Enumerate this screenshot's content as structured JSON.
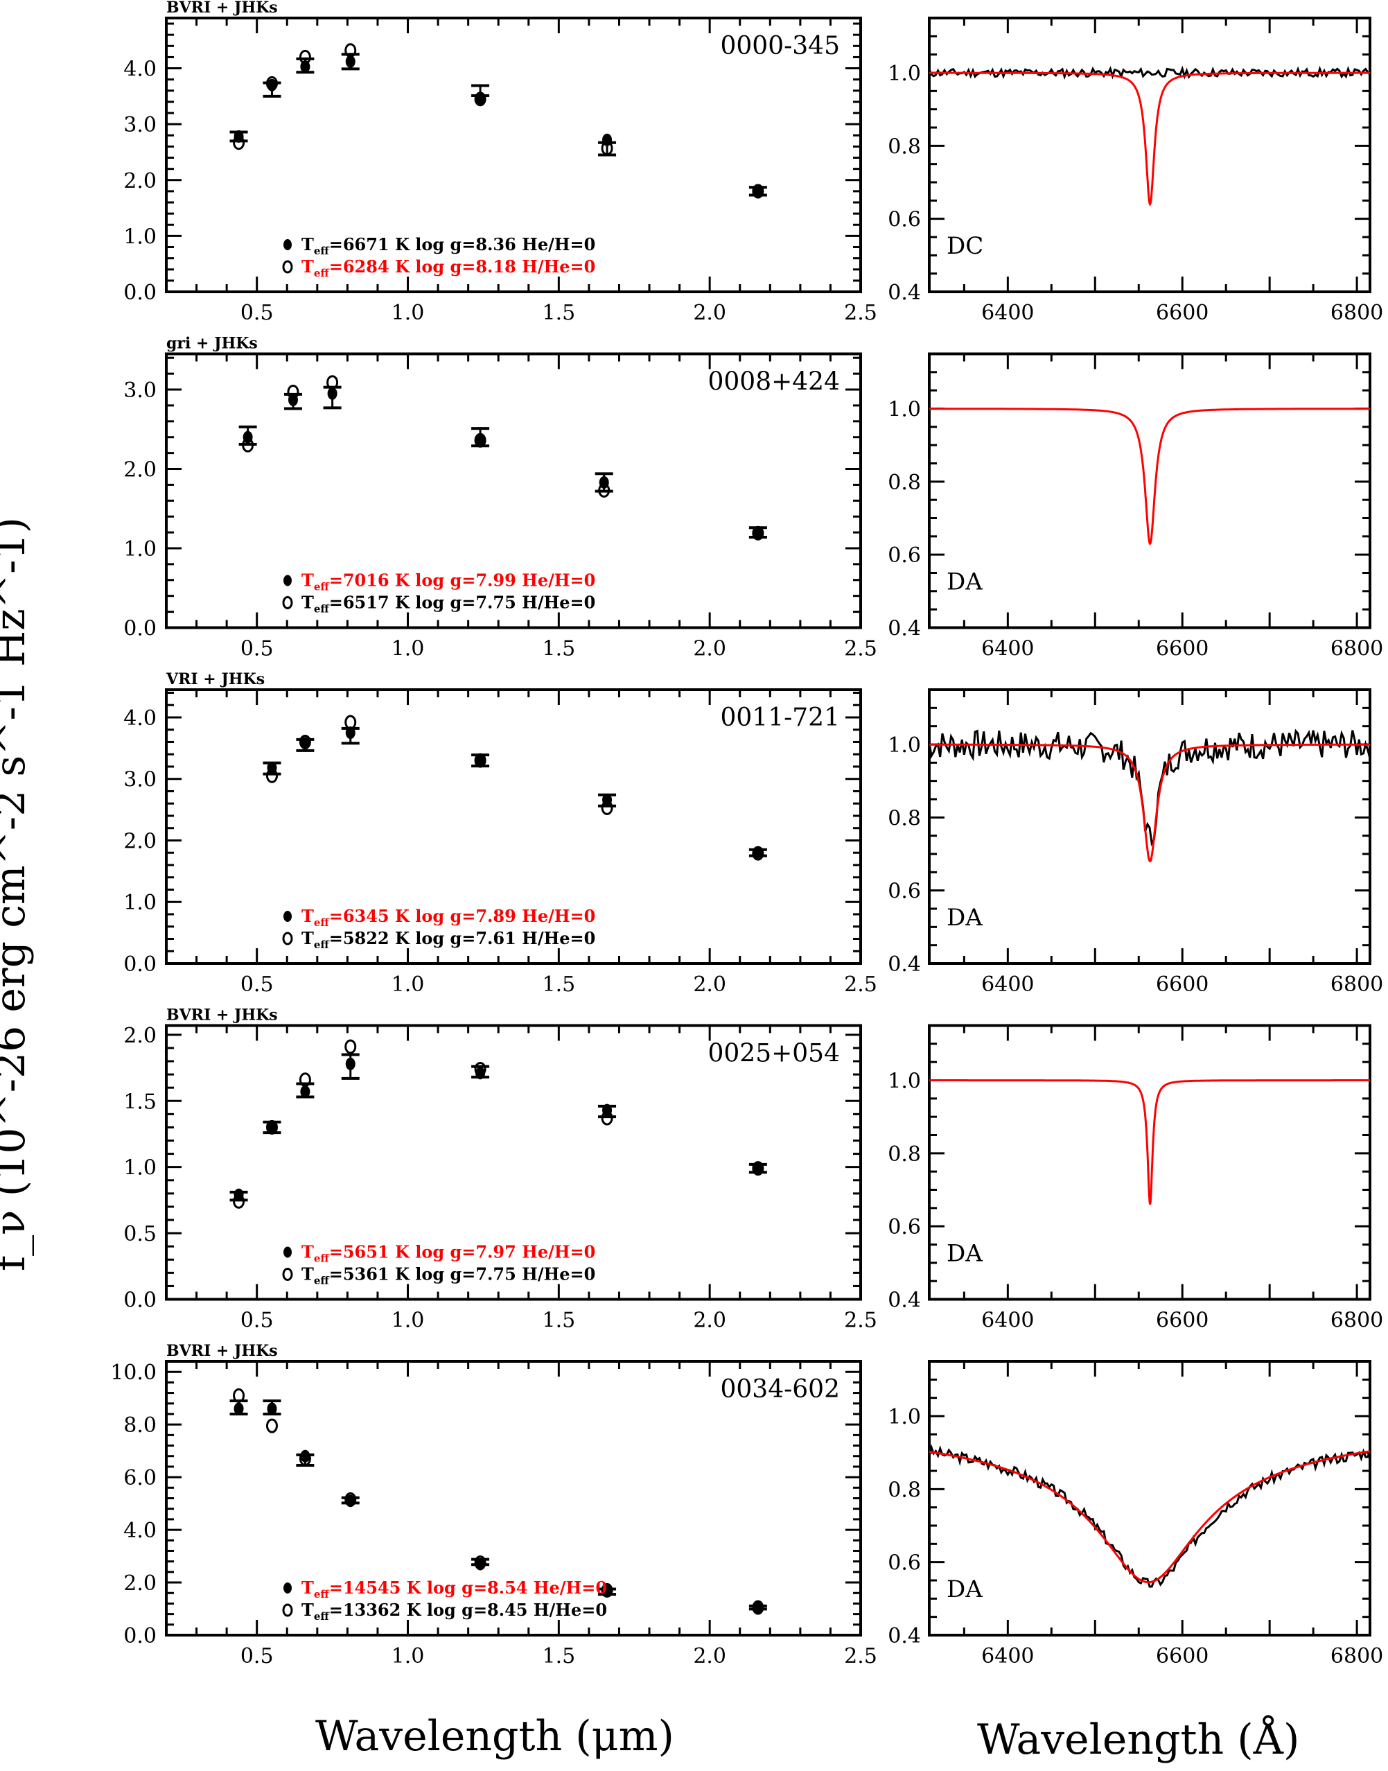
{
  "colors": {
    "model_red": "#ff0000",
    "observed_black": "#000000"
  },
  "figure": {
    "ylabel": "f_ν (10^-26 erg cm^-2 s^-1 Hz^-1)",
    "xlabel_left": "Wavelength (μm)",
    "xlabel_right": "Wavelength (Å)"
  },
  "chart_data": [
    {
      "type": "scatter",
      "panel": 1,
      "object": "0000-345",
      "filters": "BVRI + JHKs",
      "xlabel": "Wavelength (μm)",
      "xlim": [
        0.2,
        2.5
      ],
      "xticks": [
        "0.5",
        "1.0",
        "1.5",
        "2.0",
        "2.5"
      ],
      "ylim": [
        0.0,
        4.9
      ],
      "yticks": [
        "0.0",
        "1.0",
        "2.0",
        "3.0",
        "4.0"
      ],
      "ytick_values": [
        0,
        1,
        2,
        3,
        4
      ],
      "observed": {
        "x": [
          0.44,
          0.55,
          0.66,
          0.81,
          1.24,
          1.66,
          2.16
        ],
        "y": [
          2.78,
          3.62,
          4.05,
          4.12,
          3.6,
          2.56,
          1.8
        ],
        "err": [
          0.08,
          0.12,
          0.12,
          0.13,
          0.09,
          0.11,
          0.07
        ]
      },
      "filled_model": {
        "y": [
          2.78,
          3.7,
          4.03,
          4.12,
          3.45,
          2.72,
          1.78
        ],
        "red": false
      },
      "open_model": {
        "y": [
          2.67,
          3.73,
          4.2,
          4.32,
          3.45,
          2.57,
          1.8
        ],
        "red": true
      },
      "legend": [
        {
          "marker": "filled",
          "teff": "6671",
          "rest": " K  log g=8.36  He/H=0",
          "red": false
        },
        {
          "marker": "open",
          "teff": "6284",
          "rest": " K  log g=8.18  H/He=0",
          "red": true
        }
      ]
    },
    {
      "type": "scatter",
      "panel": 2,
      "object": "0008+424",
      "filters": "gri + JHKs",
      "xlim": [
        0.2,
        2.5
      ],
      "xticks": [
        "0.5",
        "1.0",
        "1.5",
        "2.0",
        "2.5"
      ],
      "ylim": [
        0.0,
        3.45
      ],
      "yticks": [
        "0.0",
        "1.0",
        "2.0",
        "3.0"
      ],
      "ytick_values": [
        0,
        1,
        2,
        3
      ],
      "observed": {
        "x": [
          0.47,
          0.62,
          0.75,
          1.24,
          1.65,
          2.16
        ],
        "y": [
          2.42,
          2.85,
          2.9,
          2.4,
          1.83,
          1.2
        ],
        "err": [
          0.11,
          0.09,
          0.13,
          0.11,
          0.11,
          0.06
        ]
      },
      "filled_model": {
        "y": [
          2.4,
          2.87,
          2.95,
          2.36,
          1.83,
          1.19
        ],
        "red": true
      },
      "open_model": {
        "y": [
          2.3,
          2.97,
          3.09,
          2.36,
          1.73,
          1.19
        ],
        "red": false
      },
      "legend": [
        {
          "marker": "filled",
          "teff": "7016",
          "rest": " K  log g=7.99  He/H=0",
          "red": true
        },
        {
          "marker": "open",
          "teff": "6517",
          "rest": " K  log g=7.75  H/He=0",
          "red": false
        }
      ]
    },
    {
      "type": "scatter",
      "panel": 3,
      "object": "0011-721",
      "filters": "VRI + JHKs",
      "xlim": [
        0.2,
        2.5
      ],
      "xticks": [
        "0.5",
        "1.0",
        "1.5",
        "2.0",
        "2.5"
      ],
      "ylim": [
        0.0,
        4.45
      ],
      "yticks": [
        "0.0",
        "1.0",
        "2.0",
        "3.0",
        "4.0"
      ],
      "ytick_values": [
        0,
        1,
        2,
        3,
        4
      ],
      "observed": {
        "x": [
          0.55,
          0.66,
          0.81,
          1.24,
          1.66,
          2.16
        ],
        "y": [
          3.17,
          3.55,
          3.7,
          3.3,
          2.65,
          1.8
        ],
        "err": [
          0.09,
          0.09,
          0.12,
          0.09,
          0.09,
          0.05
        ]
      },
      "filled_model": {
        "y": [
          3.18,
          3.58,
          3.75,
          3.3,
          2.66,
          1.79
        ],
        "red": true
      },
      "open_model": {
        "y": [
          3.05,
          3.6,
          3.92,
          3.3,
          2.53,
          1.79
        ],
        "red": false
      },
      "legend": [
        {
          "marker": "filled",
          "teff": "6345",
          "rest": " K  log g=7.89  He/H=0",
          "red": true
        },
        {
          "marker": "open",
          "teff": "5822",
          "rest": " K  log g=7.61  H/He=0",
          "red": false
        }
      ]
    },
    {
      "type": "scatter",
      "panel": 4,
      "object": "0025+054",
      "filters": "BVRI + JHKs",
      "xlim": [
        0.2,
        2.5
      ],
      "xticks": [
        "0.5",
        "1.0",
        "1.5",
        "2.0",
        "2.5"
      ],
      "ylim": [
        0.0,
        2.07
      ],
      "yticks": [
        "0.0",
        "0.5",
        "1.0",
        "1.5",
        "2.0"
      ],
      "ytick_values": [
        0,
        0.5,
        1,
        1.5,
        2
      ],
      "observed": {
        "x": [
          0.44,
          0.55,
          0.66,
          0.81,
          1.24,
          1.66,
          2.16
        ],
        "y": [
          0.78,
          1.3,
          1.58,
          1.76,
          1.72,
          1.42,
          0.99
        ],
        "err": [
          0.03,
          0.04,
          0.05,
          0.09,
          0.04,
          0.04,
          0.03
        ]
      },
      "filled_model": {
        "y": [
          0.79,
          1.3,
          1.57,
          1.78,
          1.71,
          1.43,
          0.99
        ],
        "red": true
      },
      "open_model": {
        "y": [
          0.74,
          1.3,
          1.66,
          1.91,
          1.74,
          1.37,
          0.99
        ],
        "red": false
      },
      "legend": [
        {
          "marker": "filled",
          "teff": "5651",
          "rest": " K  log g=7.97  He/H=0",
          "red": true
        },
        {
          "marker": "open",
          "teff": "5361",
          "rest": " K  log g=7.75  H/He=0",
          "red": false
        }
      ]
    },
    {
      "type": "scatter",
      "panel": 5,
      "object": "0034-602",
      "filters": "BVRI + JHKs",
      "xlim": [
        0.2,
        2.5
      ],
      "xticks": [
        "0.5",
        "1.0",
        "1.5",
        "2.0",
        "2.5"
      ],
      "ylim": [
        0.0,
        10.4
      ],
      "yticks": [
        "0.0",
        "2.0",
        "4.0",
        "6.0",
        "8.0",
        "10.0"
      ],
      "ytick_values": [
        0,
        2,
        4,
        6,
        8,
        10
      ],
      "observed": {
        "x": [
          0.44,
          0.55,
          0.66,
          0.81,
          1.24,
          1.66,
          2.16
        ],
        "y": [
          8.65,
          8.65,
          6.65,
          5.12,
          2.78,
          1.65,
          1.05
        ],
        "err": [
          0.25,
          0.25,
          0.2,
          0.1,
          0.1,
          0.1,
          0.06
        ]
      },
      "filled_model": {
        "y": [
          8.6,
          8.6,
          6.8,
          5.1,
          2.7,
          1.7,
          1.05
        ],
        "red": true
      },
      "open_model": {
        "y": [
          9.1,
          7.95,
          6.7,
          5.15,
          2.75,
          1.7,
          1.05
        ],
        "red": false
      },
      "legend": [
        {
          "marker": "filled",
          "teff": "14545",
          "rest": " K  log g=8.54  He/H=0",
          "red": true
        },
        {
          "marker": "open",
          "teff": "13362",
          "rest": " K  log g=8.45  H/He=0",
          "red": false
        }
      ]
    },
    {
      "type": "line",
      "panel": 1,
      "spectral_type": "DC",
      "xlabel": "Wavelength (Å)",
      "xlim": [
        6310,
        6815
      ],
      "xticks": [
        "6400",
        "6600",
        "6800"
      ],
      "xtick_values": [
        6400,
        6600,
        6800
      ],
      "ylim": [
        0.4,
        1.15
      ],
      "yticks": [
        "0.4",
        "0.6",
        "0.8",
        "1.0"
      ],
      "ytick_values": [
        0.4,
        0.6,
        0.8,
        1.0
      ],
      "model_line": {
        "center": 6563,
        "depth": 0.36,
        "width": 6,
        "wing": 0.3
      },
      "observed": {
        "continuum": 1.0,
        "noise": 0.007,
        "line_depth": 0.0,
        "line_width": 6,
        "seed": 11
      }
    },
    {
      "type": "line",
      "panel": 2,
      "spectral_type": "DA",
      "xlim": [
        6310,
        6815
      ],
      "xticks": [
        "6400",
        "6600",
        "6800"
      ],
      "xtick_values": [
        6400,
        6600,
        6800
      ],
      "ylim": [
        0.4,
        1.15
      ],
      "yticks": [
        "0.4",
        "0.6",
        "0.8",
        "1.0"
      ],
      "ytick_values": [
        0.4,
        0.6,
        0.8,
        1.0
      ],
      "model_line": {
        "center": 6563,
        "depth": 0.37,
        "width": 7,
        "wing": 0.3
      },
      "observed": null
    },
    {
      "type": "line",
      "panel": 3,
      "spectral_type": "DA",
      "xlim": [
        6310,
        6815
      ],
      "xticks": [
        "6400",
        "6600",
        "6800"
      ],
      "xtick_values": [
        6400,
        6600,
        6800
      ],
      "ylim": [
        0.4,
        1.15
      ],
      "yticks": [
        "0.4",
        "0.6",
        "0.8",
        "1.0"
      ],
      "ytick_values": [
        0.4,
        0.6,
        0.8,
        1.0
      ],
      "model_line": {
        "center": 6563,
        "depth": 0.32,
        "width": 9,
        "wing": 0.3
      },
      "observed": {
        "continuum": 1.0,
        "noise": 0.025,
        "line_depth": 0.26,
        "line_width": 11,
        "seed": 7
      }
    },
    {
      "type": "line",
      "panel": 4,
      "spectral_type": "DA",
      "xlim": [
        6310,
        6815
      ],
      "xticks": [
        "6400",
        "6600",
        "6800"
      ],
      "xtick_values": [
        6400,
        6600,
        6800
      ],
      "ylim": [
        0.4,
        1.15
      ],
      "yticks": [
        "0.4",
        "0.6",
        "0.8",
        "1.0"
      ],
      "ytick_values": [
        0.4,
        0.6,
        0.8,
        1.0
      ],
      "model_line": {
        "center": 6563,
        "depth": 0.34,
        "width": 3.5,
        "wing": 0.3
      },
      "observed": null
    },
    {
      "type": "line",
      "panel": 5,
      "spectral_type": "DA",
      "xlim": [
        6310,
        6815
      ],
      "xticks": [
        "6400",
        "6600",
        "6800"
      ],
      "xtick_values": [
        6400,
        6600,
        6800
      ],
      "ylim": [
        0.4,
        1.15
      ],
      "yticks": [
        "0.4",
        "0.6",
        "0.8",
        "1.0"
      ],
      "ytick_values": [
        0.4,
        0.6,
        0.8,
        1.0
      ],
      "model_line": {
        "center": 6561,
        "depth": 0.455,
        "width": 55,
        "wing": 1.0
      },
      "observed": {
        "continuum": 1.0,
        "noise": 0.009,
        "line_depth": 0.46,
        "line_width": 55,
        "seed": 3
      }
    }
  ]
}
